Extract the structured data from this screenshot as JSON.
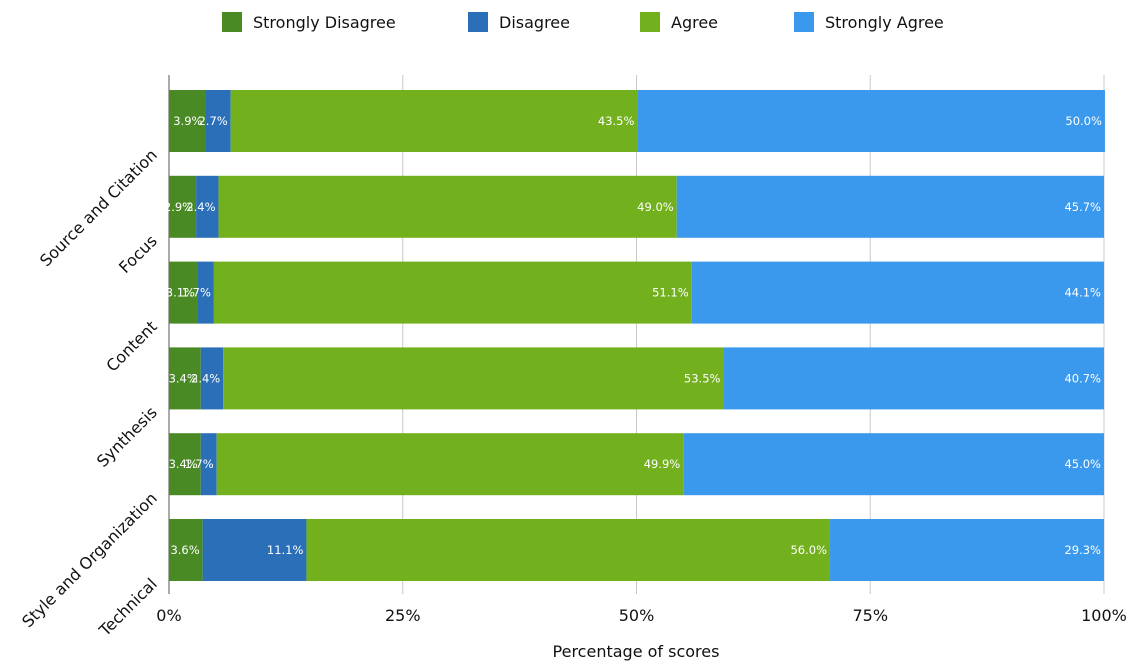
{
  "chart_data": {
    "type": "bar",
    "orientation": "horizontal",
    "stacked": true,
    "categories": [
      "Source and Citation",
      "Focus",
      "Content",
      "Synthesis",
      "Style and Organization",
      "Technical"
    ],
    "series": [
      {
        "name": "Strongly Disagree",
        "color": "#4a8a24",
        "values": [
          3.9,
          2.9,
          3.1,
          3.4,
          3.4,
          3.6
        ],
        "labels": [
          "3.9%",
          "2.9%",
          "3.1%",
          "3.4%",
          "3.4%",
          "3.6%"
        ]
      },
      {
        "name": "Disagree",
        "color": "#2b6fb8",
        "values": [
          2.7,
          2.4,
          1.7,
          2.4,
          1.7,
          11.1
        ],
        "labels": [
          "2.7%",
          "2.4%",
          "1.7%",
          "2.4%",
          "1.7%",
          "11.1%"
        ]
      },
      {
        "name": "Agree",
        "color": "#72b01e",
        "values": [
          43.5,
          49.0,
          51.1,
          53.5,
          49.9,
          56.0
        ],
        "labels": [
          "43.5%",
          "49.0%",
          "51.1%",
          "53.5%",
          "49.9%",
          "56.0%"
        ]
      },
      {
        "name": "Strongly Agree",
        "color": "#3a99ec",
        "values": [
          50.0,
          45.7,
          44.1,
          40.7,
          45.0,
          29.3
        ],
        "labels": [
          "50.0%",
          "45.7%",
          "44.1%",
          "40.7%",
          "45.0%",
          "29.3%"
        ]
      }
    ],
    "xticks": [
      0,
      25,
      50,
      75,
      100
    ],
    "xtick_labels": [
      "0%",
      "25%",
      "50%",
      "75%",
      "100%"
    ],
    "xlim": [
      0,
      100
    ],
    "xlabel": "Percentage of scores",
    "grid": true,
    "legend_position": "top"
  }
}
